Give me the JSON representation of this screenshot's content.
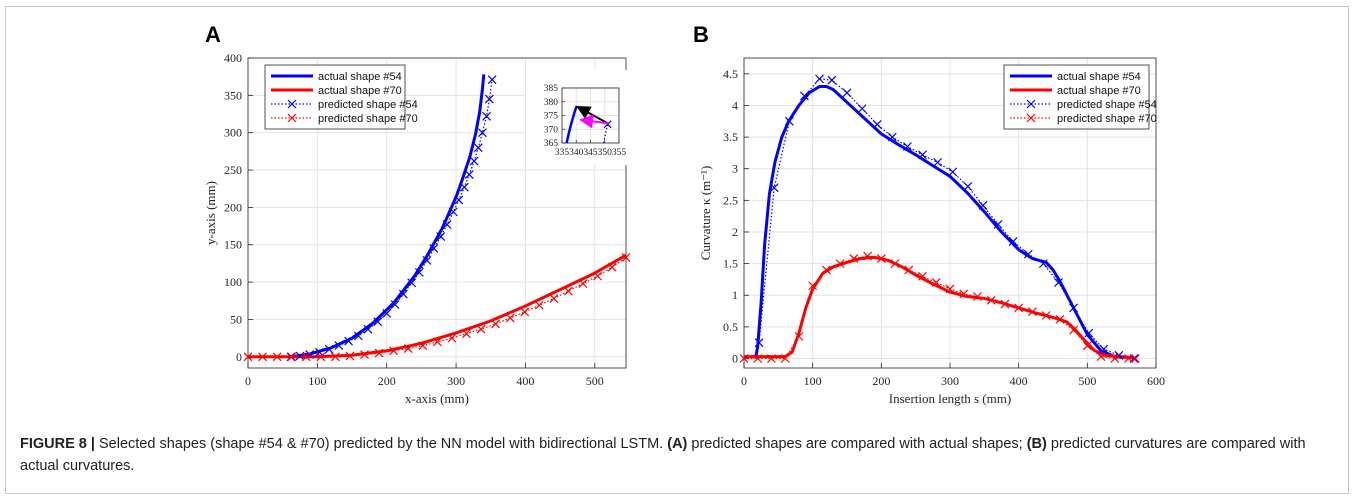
{
  "figure": {
    "caption_label": "FIGURE 8 |",
    "caption_t1": " Selected shapes (shape #54 & #70) predicted by the NN model with bidirectional LSTM. ",
    "caption_b1": "(A)",
    "caption_t2": " predicted shapes are compared with actual shapes; ",
    "caption_b2": "(B)",
    "caption_t3": " predicted curvatures are compared with actual curvatures."
  },
  "colors": {
    "blue": "#0000ff",
    "red": "#ff0000",
    "black": "#000000",
    "magenta": "#ff00ff"
  },
  "chart_data": [
    {
      "panel": "A",
      "type": "line",
      "xlabel": "x-axis (mm)",
      "ylabel": "y-axis (mm)",
      "xlim": [
        0,
        545
      ],
      "ylim": [
        -15,
        400
      ],
      "xticks": [
        0,
        100,
        200,
        300,
        400,
        500
      ],
      "yticks": [
        0,
        50,
        100,
        150,
        200,
        250,
        300,
        350,
        400
      ],
      "grid": true,
      "legend_position": "top-left",
      "series": [
        {
          "name": "actual shape #54",
          "style": "solid",
          "color": "#0000ff",
          "x": [
            62,
            90,
            120,
            150,
            180,
            210,
            240,
            260,
            280,
            300,
            310,
            320,
            328,
            334,
            338,
            340
          ],
          "y": [
            0,
            4,
            12,
            25,
            45,
            72,
            108,
            138,
            172,
            214,
            240,
            268,
            298,
            328,
            358,
            378
          ]
        },
        {
          "name": "actual shape #70",
          "style": "solid",
          "color": "#ff0000",
          "x": [
            0,
            50,
            100,
            150,
            200,
            250,
            300,
            350,
            400,
            450,
            500,
            545
          ],
          "y": [
            0,
            0,
            0,
            2,
            8,
            18,
            32,
            48,
            68,
            90,
            112,
            136
          ]
        },
        {
          "name": "predicted shape #54",
          "style": "dotted",
          "marker": "x",
          "color": "#0000ff",
          "x": [
            62,
            75,
            89,
            103,
            117,
            131,
            145,
            159,
            173,
            187,
            200,
            212,
            224,
            236,
            247,
            258,
            268,
            278,
            287,
            296,
            304,
            312,
            319,
            326,
            332,
            338,
            344,
            348,
            352
          ],
          "y": [
            0,
            1,
            3,
            6,
            10,
            15,
            21,
            28,
            37,
            47,
            58,
            70,
            84,
            99,
            113,
            129,
            145,
            161,
            177,
            194,
            210,
            227,
            244,
            262,
            280,
            300,
            322,
            345,
            371
          ]
        },
        {
          "name": "predicted shape #70",
          "style": "dotted",
          "marker": "x",
          "color": "#ff0000",
          "x": [
            0,
            21,
            42,
            63,
            84,
            105,
            126,
            147,
            168,
            189,
            210,
            231,
            252,
            273,
            294,
            315,
            336,
            357,
            378,
            399,
            420,
            441,
            462,
            483,
            504,
            525,
            545
          ],
          "y": [
            0,
            0,
            0,
            0,
            0,
            0,
            0,
            1,
            3,
            5,
            8,
            11,
            15,
            20,
            25,
            31,
            37,
            44,
            52,
            60,
            69,
            78,
            88,
            98,
            108,
            120,
            133
          ]
        }
      ],
      "inset": {
        "xlim": [
          335,
          355
        ],
        "ylim": [
          365,
          385
        ],
        "xticks": [
          335,
          340,
          345,
          350,
          355
        ],
        "yticks": [
          365,
          370,
          375,
          380,
          385
        ],
        "actual_x": [
          336.6,
          337.5,
          338.5,
          339.5,
          340.2
        ],
        "actual_y": [
          365,
          369,
          373,
          376.5,
          378.5
        ],
        "predicted_x": [
          349.6,
          350.3,
          351.0
        ],
        "predicted_y": [
          365,
          368.5,
          371.8
        ],
        "black_arrow": {
          "from": [
            351.0,
            372.2
          ],
          "to": [
            340.4,
            378.2
          ]
        },
        "magenta_arrow": {
          "from": [
            351.0,
            372.2
          ],
          "to": [
            341.5,
            373.4
          ]
        }
      }
    },
    {
      "panel": "B",
      "type": "line",
      "xlabel": "Insertion length s (mm)",
      "ylabel": "Curvature κ (m⁻¹)",
      "xlim": [
        0,
        600
      ],
      "ylim": [
        -0.15,
        4.75
      ],
      "xticks": [
        0,
        100,
        200,
        300,
        400,
        500,
        600
      ],
      "yticks": [
        0,
        0.5,
        1,
        1.5,
        2,
        2.5,
        3,
        3.5,
        4,
        4.5
      ],
      "grid": true,
      "legend_position": "top-right",
      "series": [
        {
          "name": "actual shape #54",
          "style": "solid",
          "color": "#0000ff",
          "x": [
            17,
            20,
            25,
            30,
            37,
            45,
            55,
            65,
            80,
            95,
            110,
            120,
            130,
            150,
            175,
            200,
            225,
            250,
            275,
            300,
            325,
            350,
            375,
            400,
            420,
            440,
            450,
            460,
            480,
            500,
            520,
            540,
            560,
            570
          ],
          "y": [
            0.0,
            0.2,
            0.9,
            1.8,
            2.6,
            3.1,
            3.5,
            3.75,
            4.0,
            4.2,
            4.3,
            4.3,
            4.25,
            4.05,
            3.8,
            3.55,
            3.38,
            3.22,
            3.05,
            2.88,
            2.62,
            2.32,
            2.0,
            1.72,
            1.58,
            1.52,
            1.4,
            1.22,
            0.8,
            0.38,
            0.12,
            0.03,
            0.02,
            0.0
          ]
        },
        {
          "name": "actual shape #70",
          "style": "solid",
          "color": "#ff0000",
          "x": [
            0,
            20,
            40,
            60,
            70,
            80,
            90,
            100,
            115,
            130,
            150,
            170,
            190,
            210,
            230,
            250,
            275,
            300,
            325,
            350,
            375,
            400,
            425,
            450,
            470,
            480,
            495,
            510,
            525,
            545,
            560,
            570
          ],
          "y": [
            0.03,
            0.03,
            0.03,
            0.03,
            0.1,
            0.4,
            0.8,
            1.1,
            1.35,
            1.45,
            1.52,
            1.58,
            1.6,
            1.55,
            1.45,
            1.32,
            1.18,
            1.05,
            0.98,
            0.95,
            0.88,
            0.8,
            0.72,
            0.65,
            0.58,
            0.48,
            0.3,
            0.13,
            0.05,
            0.03,
            0.02,
            0.0
          ]
        },
        {
          "name": "predicted shape #54",
          "style": "dotted",
          "marker": "x",
          "color": "#0000ff",
          "x": [
            22,
            44,
            66,
            88,
            110,
            128,
            150,
            172,
            194,
            216,
            238,
            260,
            282,
            304,
            326,
            348,
            370,
            392,
            414,
            436,
            458,
            480,
            502,
            524,
            546,
            568
          ],
          "y": [
            0.25,
            2.7,
            3.75,
            4.15,
            4.42,
            4.4,
            4.2,
            3.95,
            3.7,
            3.5,
            3.35,
            3.22,
            3.1,
            2.95,
            2.72,
            2.42,
            2.12,
            1.85,
            1.65,
            1.5,
            1.2,
            0.8,
            0.4,
            0.15,
            0.05,
            0.0
          ]
        },
        {
          "name": "predicted shape #70",
          "style": "dotted",
          "marker": "x",
          "color": "#ff0000",
          "x": [
            0,
            20,
            40,
            60,
            80,
            100,
            120,
            140,
            160,
            180,
            200,
            220,
            240,
            260,
            280,
            300,
            320,
            340,
            360,
            380,
            400,
            420,
            440,
            460,
            480,
            500,
            520,
            540,
            560,
            570
          ],
          "y": [
            0.0,
            0.0,
            0.0,
            0.0,
            0.35,
            1.15,
            1.4,
            1.5,
            1.58,
            1.62,
            1.58,
            1.5,
            1.4,
            1.3,
            1.2,
            1.1,
            1.02,
            0.98,
            0.92,
            0.86,
            0.8,
            0.74,
            0.68,
            0.62,
            0.45,
            0.2,
            0.03,
            0.0,
            0.0,
            0.0
          ]
        }
      ]
    }
  ]
}
